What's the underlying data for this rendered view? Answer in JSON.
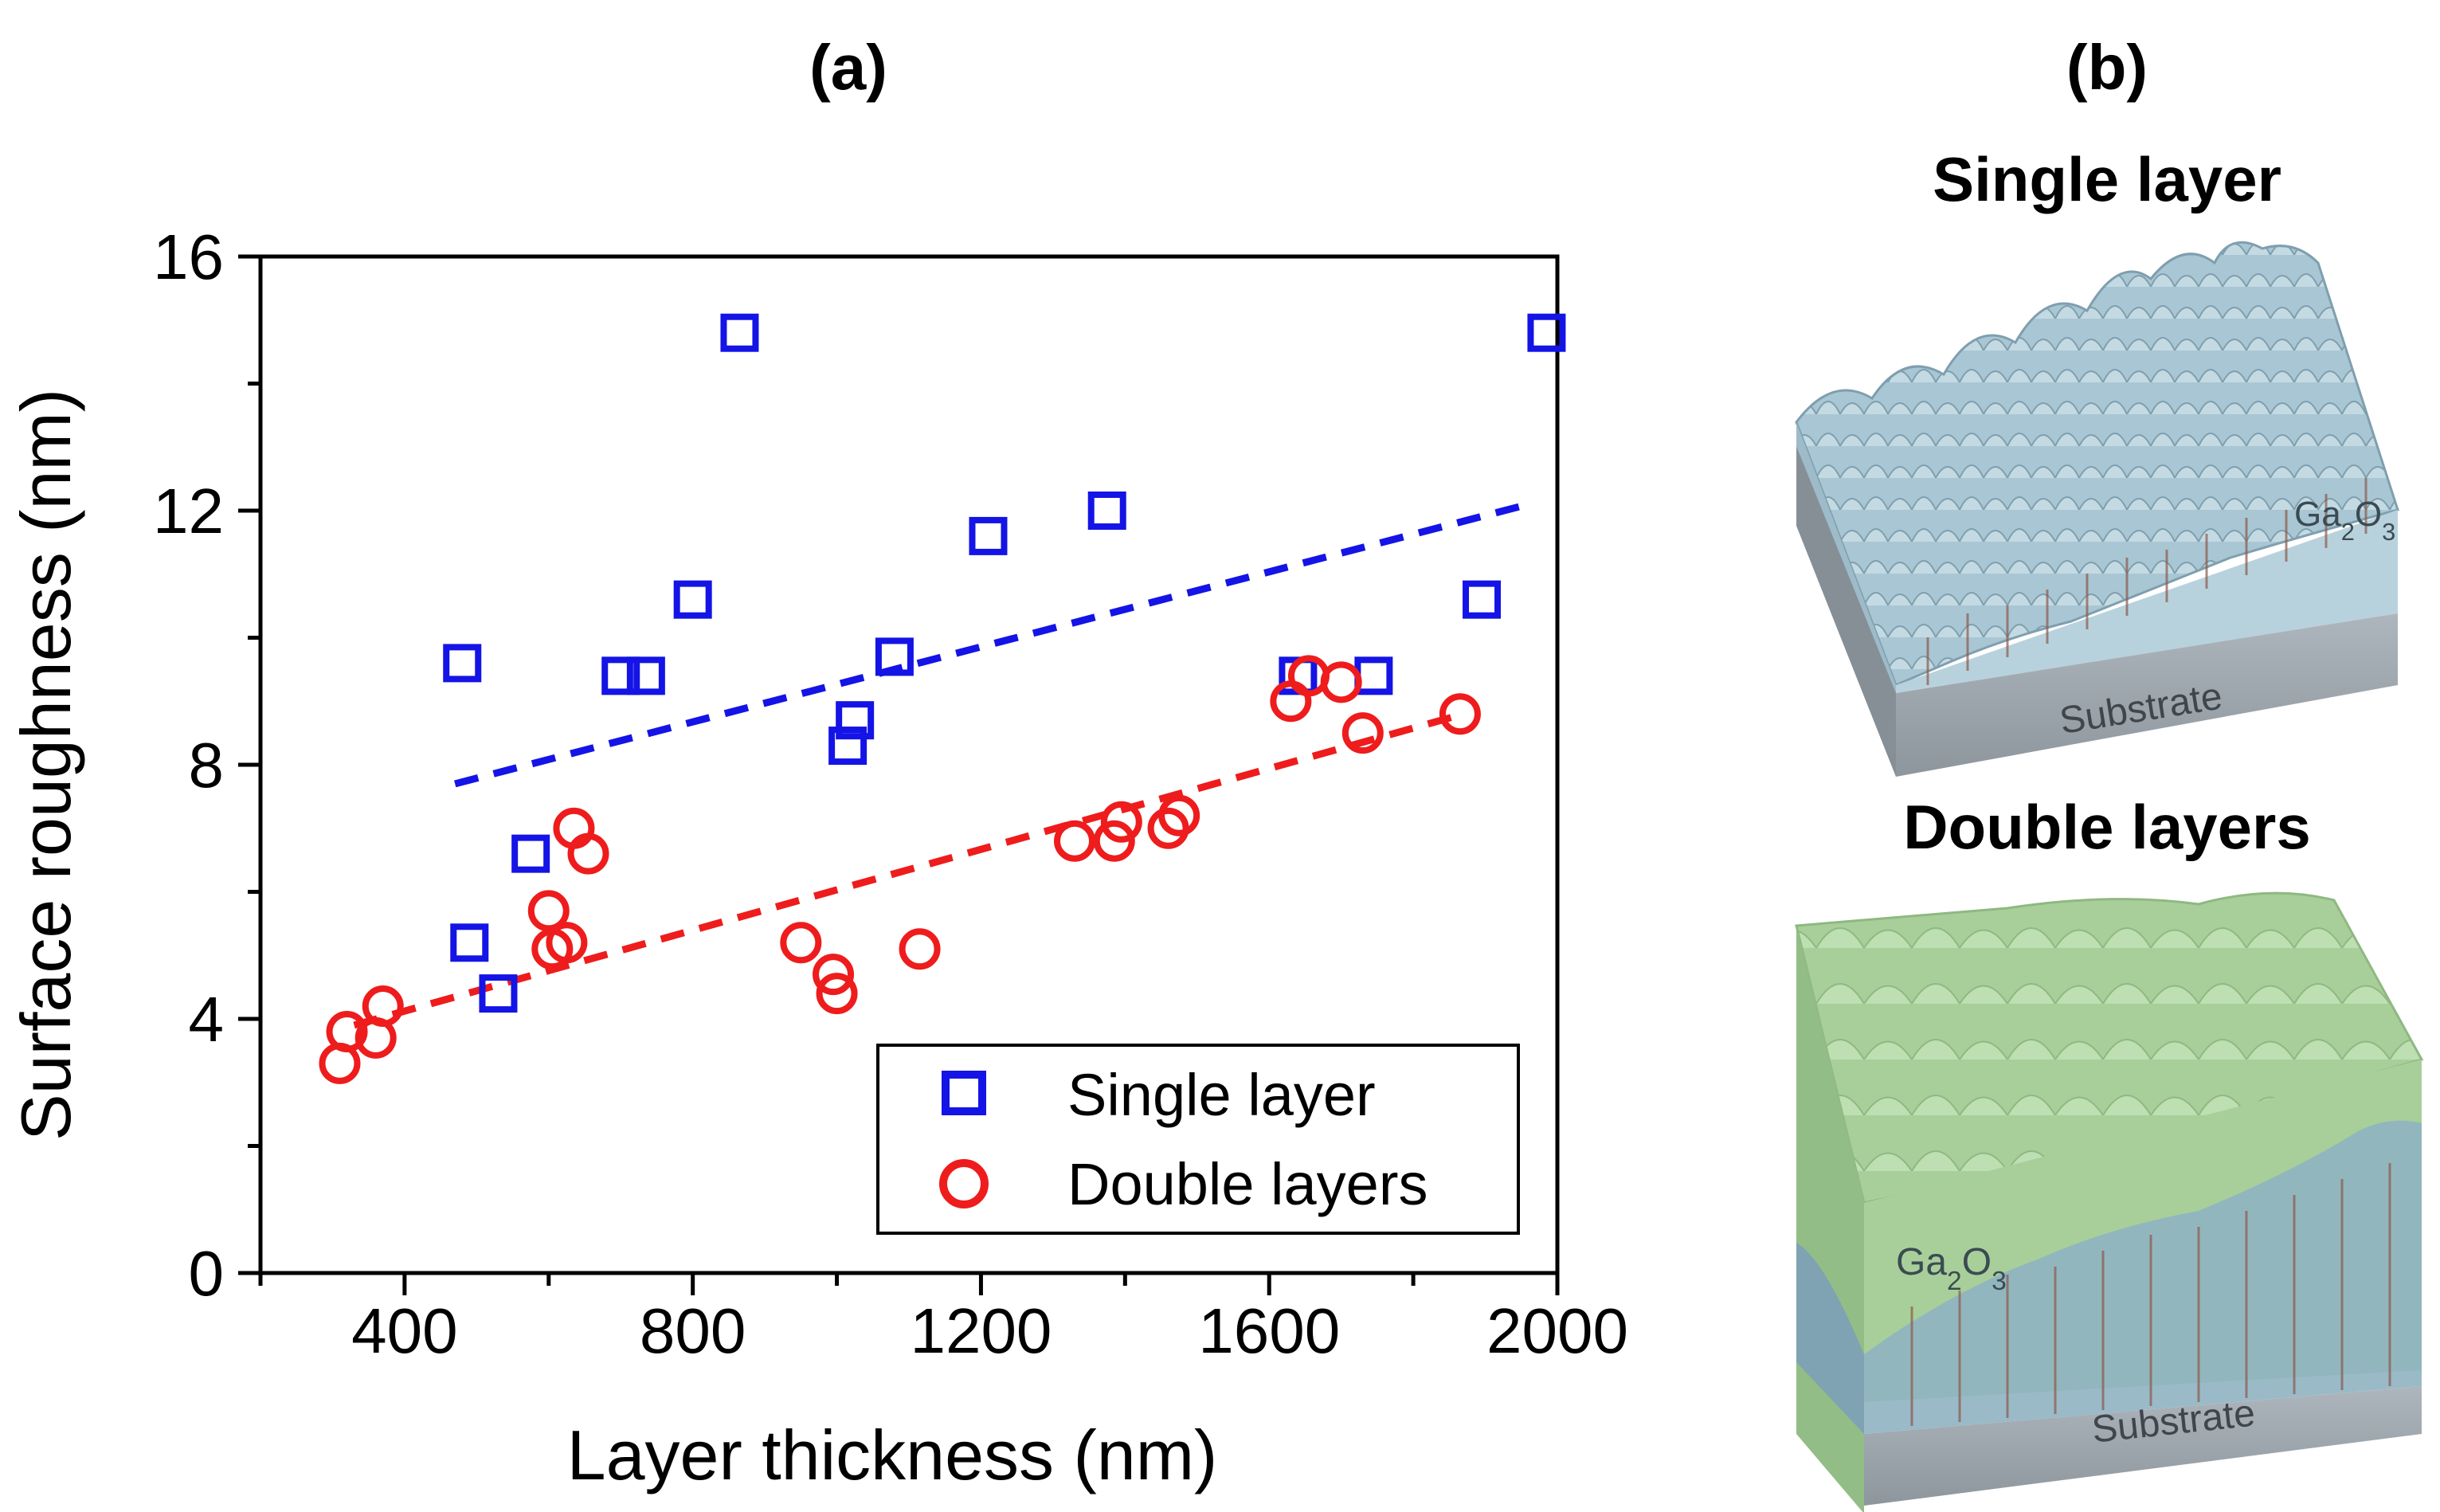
{
  "panel_a": {
    "label": "(a)"
  },
  "panel_b": {
    "label": "(b)",
    "single": {
      "title": "Single layer",
      "film_label": "Ga2O3",
      "substrate_label": "Substrate"
    },
    "double": {
      "title": "Double layers",
      "film_label": "Ga2O3",
      "substrate_label": "Substrate"
    }
  },
  "colors": {
    "single": "#1414e6",
    "double": "#ee1c1c",
    "single_film": "#a9c6d4",
    "double_film": "#a8cf9a",
    "substrate": "#9aa3ab"
  },
  "chart_data": {
    "type": "scatter",
    "title": "(a)",
    "xlabel": "Layer thickness (nm)",
    "ylabel": "Surface roughness (nm)",
    "xlim": [
      200,
      2000
    ],
    "ylim": [
      0,
      16
    ],
    "xticks": [
      400,
      800,
      1200,
      1600,
      2000
    ],
    "yticks": [
      0,
      4,
      8,
      12,
      16
    ],
    "legend_position": "bottom-right",
    "series": [
      {
        "name": "Single layer",
        "marker": "square",
        "color": "#1414e6",
        "points": [
          [
            480,
            9.6
          ],
          [
            490,
            5.2
          ],
          [
            530,
            4.4
          ],
          [
            575,
            6.6
          ],
          [
            700,
            9.4
          ],
          [
            735,
            9.4
          ],
          [
            800,
            10.6
          ],
          [
            865,
            14.8
          ],
          [
            1015,
            8.3
          ],
          [
            1025,
            8.7
          ],
          [
            1080,
            9.7
          ],
          [
            1210,
            11.6
          ],
          [
            1375,
            12.0
          ],
          [
            1640,
            9.4
          ],
          [
            1745,
            9.4
          ],
          [
            1895,
            10.6
          ],
          [
            1985,
            14.8
          ]
        ],
        "fit": [
          [
            470,
            7.7
          ],
          [
            1960,
            12.1
          ]
        ]
      },
      {
        "name": "Double layers",
        "marker": "circle",
        "color": "#ee1c1c",
        "points": [
          [
            310,
            3.3
          ],
          [
            320,
            3.8
          ],
          [
            360,
            3.7
          ],
          [
            370,
            4.2
          ],
          [
            600,
            5.7
          ],
          [
            605,
            5.1
          ],
          [
            625,
            5.2
          ],
          [
            635,
            7.0
          ],
          [
            655,
            6.6
          ],
          [
            950,
            5.2
          ],
          [
            995,
            4.7
          ],
          [
            1000,
            4.4
          ],
          [
            1115,
            5.1
          ],
          [
            1330,
            6.8
          ],
          [
            1385,
            6.8
          ],
          [
            1395,
            7.1
          ],
          [
            1460,
            7.0
          ],
          [
            1475,
            7.2
          ],
          [
            1630,
            9.0
          ],
          [
            1655,
            9.4
          ],
          [
            1700,
            9.3
          ],
          [
            1730,
            8.5
          ],
          [
            1865,
            8.8
          ]
        ],
        "fit": [
          [
            330,
            3.9
          ],
          [
            1870,
            8.8
          ]
        ]
      }
    ]
  }
}
